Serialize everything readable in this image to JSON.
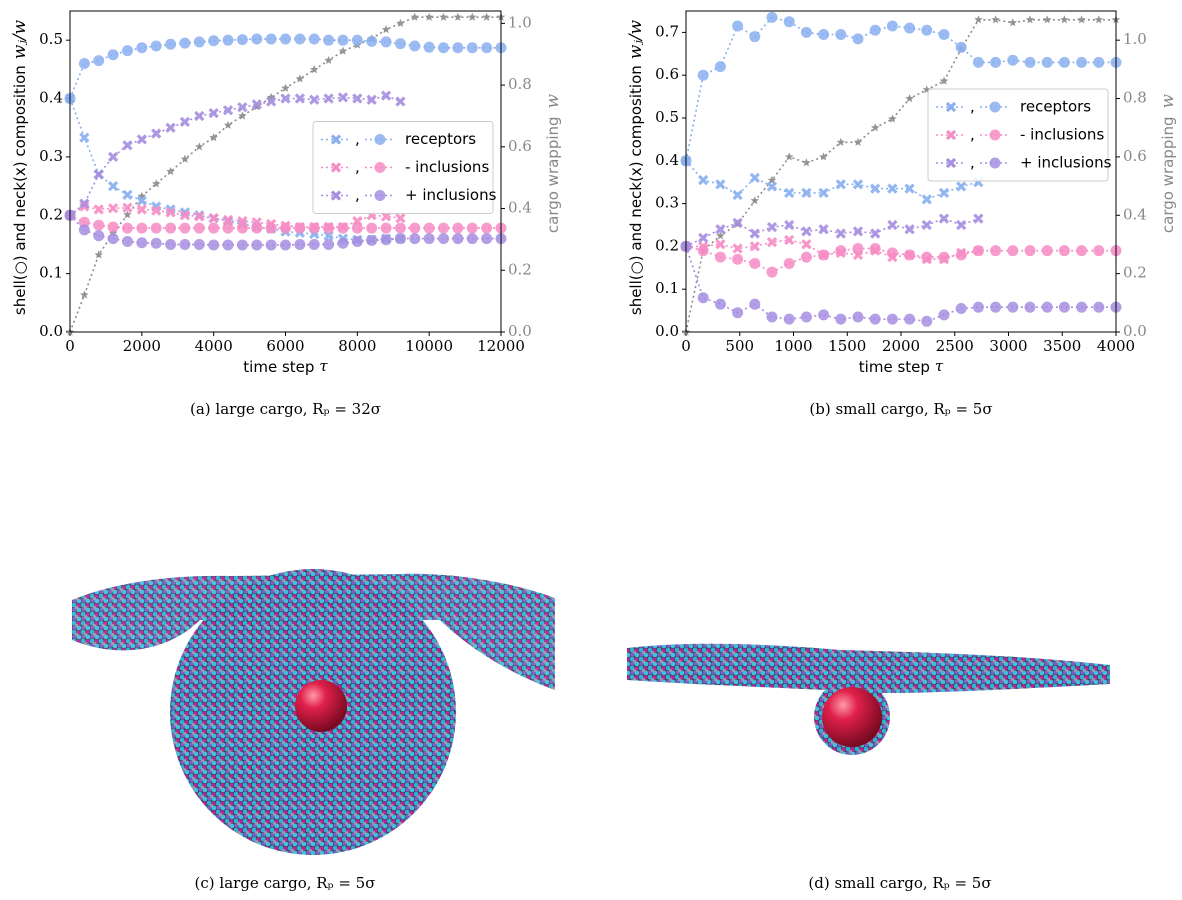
{
  "chart_data": [
    {
      "type": "line",
      "caption": "(a) large cargo, Rₚ = 32σ",
      "xlabel": "time step",
      "xlabel_symbol": "τ",
      "ylabel": "shell(○) and neck(x) composition",
      "ylabel_symbol": "wⱼ/w",
      "y2label": "cargo wrapping",
      "y2label_symbol": "w",
      "xlim": [
        0,
        12000
      ],
      "xticks": [
        0,
        2000,
        4000,
        6000,
        8000,
        10000,
        12000
      ],
      "ylim": [
        0,
        0.55
      ],
      "yticks": [
        {
          "value": 0,
          "label": "0.0"
        },
        0.1,
        0.2,
        0.3,
        0.4,
        0.5
      ],
      "y2lim": [
        0,
        1.04
      ],
      "y2ticks": [
        {
          "value": 0,
          "label": "0.0"
        },
        0.2,
        0.4,
        0.6,
        0.8,
        {
          "value": 1,
          "label": "1.0"
        }
      ],
      "legend_position": "center right",
      "legend_separator": ",",
      "x": [
        0,
        400,
        800,
        1200,
        1600,
        2000,
        2400,
        2800,
        3200,
        3600,
        4000,
        4400,
        4800,
        5200,
        5600,
        6000,
        6400,
        6800,
        7200,
        7600,
        8000,
        8400,
        8800,
        9200,
        9600,
        10000,
        10400,
        10800,
        11200,
        11600,
        12000
      ],
      "series": [
        {
          "name": "receptors",
          "color": "#89aff0",
          "shell": [
            0.4,
            0.46,
            0.465,
            0.475,
            0.482,
            0.487,
            0.49,
            0.493,
            0.495,
            0.497,
            0.499,
            0.5,
            0.501,
            0.502,
            0.502,
            0.502,
            0.502,
            0.502,
            0.5,
            0.5,
            0.5,
            0.498,
            0.497,
            0.494,
            0.49,
            0.488,
            0.487,
            0.487,
            0.487,
            0.487,
            0.487
          ],
          "neck": [
            0.4,
            0.333,
            0.27,
            0.25,
            0.235,
            0.225,
            0.215,
            0.21,
            0.205,
            0.2,
            0.195,
            0.19,
            0.185,
            0.18,
            0.177,
            0.172,
            0.17,
            0.168,
            0.165,
            0.16,
            0.158,
            0.158,
            0.16,
            0.16,
            null,
            null,
            null,
            null,
            null,
            null,
            null
          ]
        },
        {
          "name": "- inclusions",
          "color": "#f68cc4",
          "shell": [
            0.2,
            0.188,
            0.183,
            0.18,
            0.178,
            0.178,
            0.178,
            0.178,
            0.178,
            0.178,
            0.178,
            0.178,
            0.178,
            0.178,
            0.178,
            0.178,
            0.178,
            0.178,
            0.178,
            0.178,
            0.178,
            0.178,
            0.178,
            0.178,
            0.178,
            0.178,
            0.178,
            0.178,
            0.178,
            0.178,
            0.178
          ],
          "neck": [
            0.2,
            0.215,
            0.21,
            0.212,
            0.213,
            0.21,
            0.208,
            0.205,
            0.2,
            0.198,
            0.195,
            0.192,
            0.19,
            0.188,
            0.185,
            0.182,
            0.18,
            0.18,
            0.18,
            0.18,
            0.19,
            0.2,
            0.198,
            0.195,
            null,
            null,
            null,
            null,
            null,
            null,
            null
          ]
        },
        {
          "name": "+ inclusions",
          "color": "#a68ee0",
          "shell": [
            0.2,
            0.175,
            0.165,
            0.16,
            0.155,
            0.153,
            0.152,
            0.15,
            0.15,
            0.15,
            0.149,
            0.149,
            0.149,
            0.149,
            0.149,
            0.149,
            0.15,
            0.15,
            0.15,
            0.152,
            0.155,
            0.157,
            0.158,
            0.16,
            0.16,
            0.16,
            0.16,
            0.16,
            0.16,
            0.16,
            0.16
          ],
          "neck": [
            0.2,
            0.22,
            0.27,
            0.3,
            0.32,
            0.33,
            0.34,
            0.35,
            0.36,
            0.37,
            0.375,
            0.38,
            0.385,
            0.39,
            0.395,
            0.4,
            0.4,
            0.398,
            0.4,
            0.402,
            0.4,
            0.398,
            0.405,
            0.395,
            null,
            null,
            null,
            null,
            null,
            null,
            null
          ]
        }
      ],
      "wrapping": {
        "color": "#8c8c8c",
        "axis": "y2",
        "values": [
          0,
          0.12,
          0.25,
          0.32,
          0.38,
          0.44,
          0.48,
          0.52,
          0.56,
          0.6,
          0.63,
          0.67,
          0.7,
          0.73,
          0.76,
          0.79,
          0.82,
          0.85,
          0.88,
          0.91,
          0.93,
          0.95,
          0.98,
          1.0,
          1.02,
          1.02,
          1.02,
          1.02,
          1.02,
          1.02,
          1.02
        ]
      }
    },
    {
      "type": "line",
      "caption": "(b) small cargo, Rₚ = 5σ",
      "xlabel": "time step",
      "xlabel_symbol": "τ",
      "ylabel": "shell(○) and neck(x) composition",
      "ylabel_symbol": "wⱼ/w",
      "y2label": "cargo wrapping",
      "y2label_symbol": "w",
      "xlim": [
        0,
        4000
      ],
      "xticks": [
        0,
        500,
        1000,
        1500,
        2000,
        2500,
        3000,
        3500,
        4000
      ],
      "ylim": [
        0,
        0.75
      ],
      "yticks": [
        {
          "value": 0,
          "label": "0.0"
        },
        0.1,
        0.2,
        0.3,
        0.4,
        0.5,
        0.6,
        0.7
      ],
      "y2lim": [
        0,
        1.1
      ],
      "y2ticks": [
        {
          "value": 0,
          "label": "0.0"
        },
        0.2,
        0.4,
        0.6,
        0.8,
        {
          "value": 1,
          "label": "1.0"
        }
      ],
      "legend_position": "upper right",
      "legend_separator": ",",
      "x": [
        0,
        160,
        320,
        480,
        640,
        800,
        960,
        1120,
        1280,
        1440,
        1600,
        1760,
        1920,
        2080,
        2240,
        2400,
        2560,
        2720,
        2880,
        3040,
        3200,
        3360,
        3520,
        3680,
        3840,
        4000
      ],
      "series": [
        {
          "name": "receptors",
          "color": "#89aff0",
          "shell": [
            0.4,
            0.6,
            0.62,
            0.715,
            0.69,
            0.735,
            0.725,
            0.7,
            0.695,
            0.695,
            0.685,
            0.705,
            0.715,
            0.71,
            0.705,
            0.695,
            0.665,
            0.63,
            0.63,
            0.635,
            0.63,
            0.63,
            0.63,
            0.63,
            0.63,
            0.63
          ],
          "neck": [
            0.4,
            0.355,
            0.345,
            0.32,
            0.36,
            0.34,
            0.325,
            0.325,
            0.325,
            0.345,
            0.345,
            0.335,
            0.335,
            0.335,
            0.31,
            0.325,
            0.34,
            0.35,
            null,
            null,
            null,
            null,
            null,
            null,
            null,
            null
          ]
        },
        {
          "name": "- inclusions",
          "color": "#f68cc4",
          "shell": [
            0.2,
            0.19,
            0.175,
            0.17,
            0.16,
            0.14,
            0.16,
            0.175,
            0.18,
            0.19,
            0.195,
            0.195,
            0.185,
            0.18,
            0.175,
            0.175,
            0.18,
            0.19,
            0.19,
            0.19,
            0.19,
            0.19,
            0.19,
            0.19,
            0.19,
            0.19
          ],
          "neck": [
            0.2,
            0.2,
            0.205,
            0.195,
            0.2,
            0.21,
            0.215,
            0.205,
            0.18,
            0.185,
            0.18,
            0.19,
            0.175,
            0.18,
            0.17,
            0.17,
            0.185,
            0.19,
            null,
            null,
            null,
            null,
            null,
            null,
            null,
            null
          ]
        },
        {
          "name": "+ inclusions",
          "color": "#a68ee0",
          "shell": [
            0.2,
            0.08,
            0.065,
            0.045,
            0.065,
            0.035,
            0.03,
            0.035,
            0.04,
            0.03,
            0.035,
            0.03,
            0.03,
            0.03,
            0.025,
            0.04,
            0.055,
            0.058,
            0.058,
            0.058,
            0.058,
            0.058,
            0.058,
            0.058,
            0.058,
            0.058
          ],
          "neck": [
            0.2,
            0.22,
            0.24,
            0.255,
            0.23,
            0.245,
            0.25,
            0.235,
            0.24,
            0.23,
            0.235,
            0.23,
            0.25,
            0.24,
            0.25,
            0.265,
            0.25,
            0.265,
            null,
            null,
            null,
            null,
            null,
            null,
            null,
            null
          ]
        }
      ],
      "wrapping": {
        "color": "#8c8c8c",
        "axis": "y2",
        "values": [
          0,
          0.28,
          0.33,
          0.37,
          0.45,
          0.52,
          0.6,
          0.58,
          0.6,
          0.65,
          0.65,
          0.7,
          0.73,
          0.8,
          0.83,
          0.86,
          0.97,
          1.07,
          1.07,
          1.06,
          1.07,
          1.07,
          1.07,
          1.07,
          1.07,
          1.07
        ]
      }
    }
  ],
  "figures": [
    {
      "caption": "(c) large cargo, Rₚ = 5σ"
    },
    {
      "caption": "(d) small cargo, Rₚ = 5σ"
    }
  ]
}
